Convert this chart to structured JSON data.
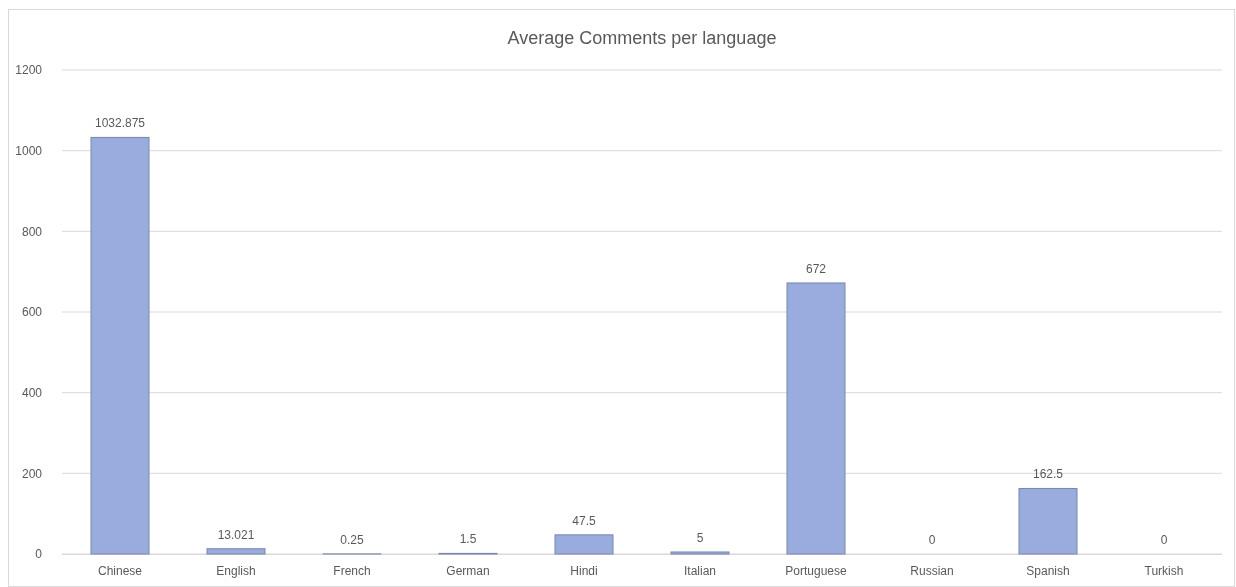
{
  "chart_data": {
    "type": "bar",
    "title": "Average Comments per language",
    "categories": [
      "Chinese",
      "English",
      "French",
      "German",
      "Hindi",
      "Italian",
      "Portuguese",
      "Russian",
      "Spanish",
      "Turkish"
    ],
    "values": [
      1032.875,
      13.021,
      0.25,
      1.5,
      47.5,
      5,
      672,
      0,
      162.5,
      0
    ],
    "color": "#9aacdd",
    "ylim": [
      0,
      1200
    ],
    "yticks": [
      0,
      200,
      400,
      600,
      800,
      1000,
      1200
    ],
    "grid": "y",
    "data_labels": true
  }
}
